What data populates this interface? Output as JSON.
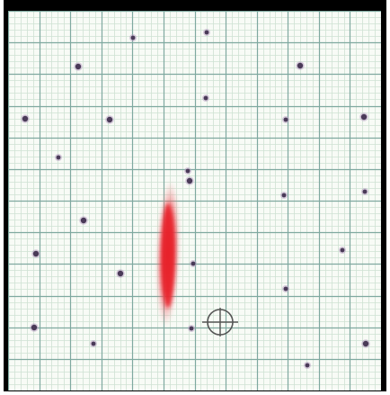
{
  "colors": {
    "frame": "#000000",
    "paper": "#f8fbf6",
    "minor_grid": "#cfe2d3",
    "major_grid": "#7fa9a0",
    "dot_stroke": "#b49cbf",
    "dot_fill": "#4a3a58",
    "streak": "#e8202a",
    "reticle": "#555555"
  },
  "grid": {
    "minor_divisions": 60,
    "major_every": 5
  },
  "stars": [
    {
      "id": 1,
      "kind": "small"
    },
    {
      "id": 2,
      "kind": "small"
    },
    {
      "id": 3,
      "kind": "medium"
    },
    {
      "id": 4,
      "kind": "medium"
    },
    {
      "id": 5,
      "kind": "small"
    },
    {
      "id": 6,
      "kind": "medium"
    },
    {
      "id": 7,
      "kind": "medium"
    },
    {
      "id": 8,
      "kind": "small"
    },
    {
      "id": 9,
      "kind": "medium"
    },
    {
      "id": 10,
      "kind": "small"
    },
    {
      "id": 11,
      "kind": "medium"
    },
    {
      "id": 12,
      "kind": "small"
    },
    {
      "id": 13,
      "kind": "small"
    },
    {
      "id": 14,
      "kind": "medium"
    },
    {
      "id": 15,
      "kind": "medium"
    },
    {
      "id": 16,
      "kind": "small"
    },
    {
      "id": 17,
      "kind": "medium"
    },
    {
      "id": 18,
      "kind": "small"
    },
    {
      "id": 19,
      "kind": "small"
    },
    {
      "id": 20,
      "kind": "medium"
    },
    {
      "id": 21,
      "kind": "small"
    },
    {
      "id": 22,
      "kind": "small"
    },
    {
      "id": 23,
      "kind": "medium"
    },
    {
      "id": 24,
      "kind": "small"
    },
    {
      "id": 25,
      "kind": "small"
    }
  ],
  "streak": {
    "kind": "red-glow"
  },
  "reticle": {
    "kind": "crosshair"
  }
}
